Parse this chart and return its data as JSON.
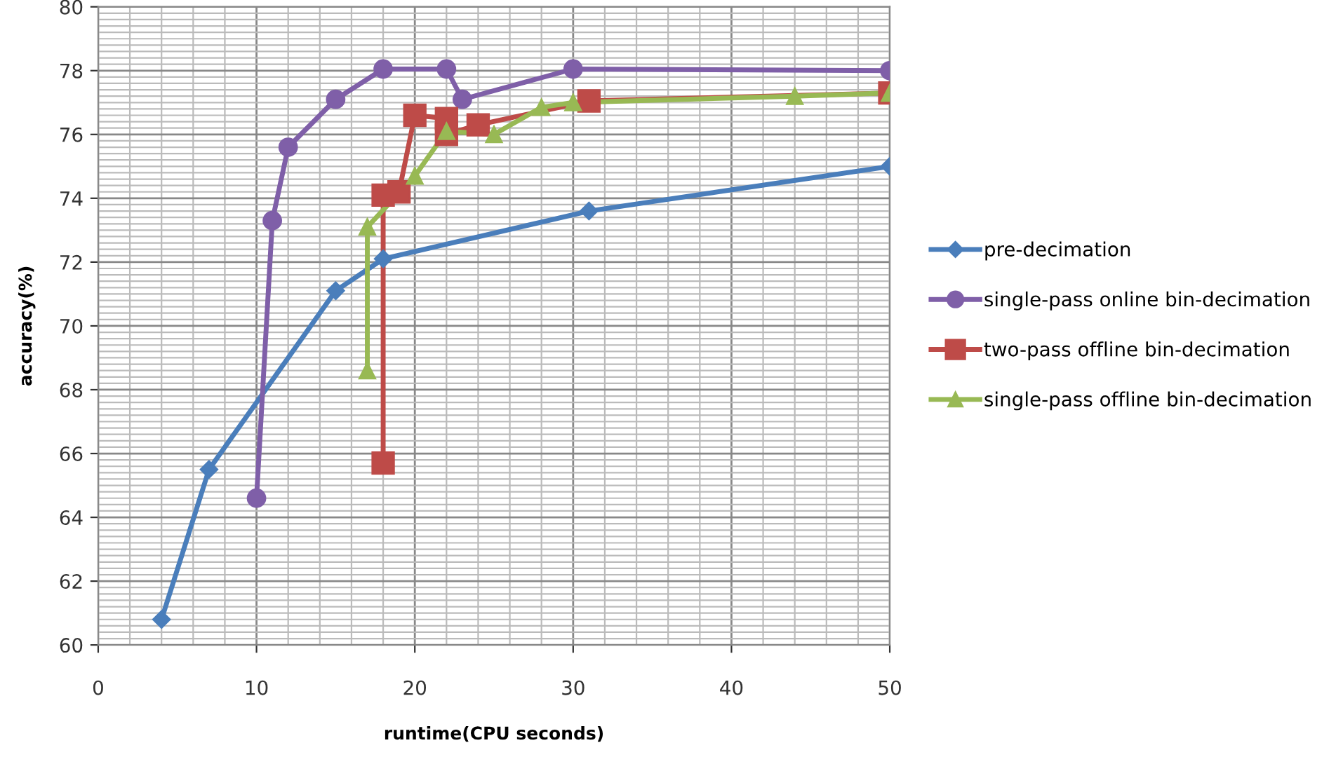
{
  "chart_data": {
    "type": "line",
    "xlabel": "runtime(CPU seconds)",
    "ylabel": "accuracy(%)",
    "xlim": [
      0,
      50
    ],
    "ylim": [
      60,
      80
    ],
    "xticks": [
      0,
      10,
      20,
      30,
      40,
      50
    ],
    "yticks": [
      60,
      62,
      64,
      66,
      68,
      70,
      72,
      74,
      76,
      78,
      80
    ],
    "grid": true,
    "legend": "right",
    "line_style": "solid",
    "series": [
      {
        "name": "pre-decimation",
        "color": "#4a7ebb",
        "marker": "diamond",
        "x": [
          4,
          7,
          15,
          18,
          31,
          50
        ],
        "values": [
          60.8,
          65.5,
          71.1,
          72.1,
          73.6,
          75.0
        ]
      },
      {
        "name": "single-pass online bin-decimation",
        "color": "#7f5fa8",
        "marker": "circle",
        "x": [
          10,
          11,
          12,
          15,
          18,
          22,
          23,
          30,
          50
        ],
        "values": [
          64.6,
          73.3,
          75.6,
          77.1,
          78.05,
          78.05,
          77.1,
          78.05,
          78.0
        ]
      },
      {
        "name": "two-pass offline bin-decimation",
        "color": "#be4b48",
        "marker": "square",
        "x": [
          18,
          18,
          19,
          20,
          22,
          22,
          24,
          31,
          50
        ],
        "values": [
          65.7,
          74.1,
          74.2,
          76.6,
          76.5,
          76.0,
          76.3,
          77.05,
          77.3
        ]
      },
      {
        "name": "single-pass offline bin-decimation",
        "color": "#98b954",
        "marker": "triangle",
        "x": [
          17,
          17,
          20,
          22,
          25,
          28,
          30,
          44,
          50
        ],
        "values": [
          68.6,
          73.1,
          74.7,
          76.1,
          76.0,
          76.85,
          77.0,
          77.2,
          77.3
        ]
      }
    ]
  }
}
